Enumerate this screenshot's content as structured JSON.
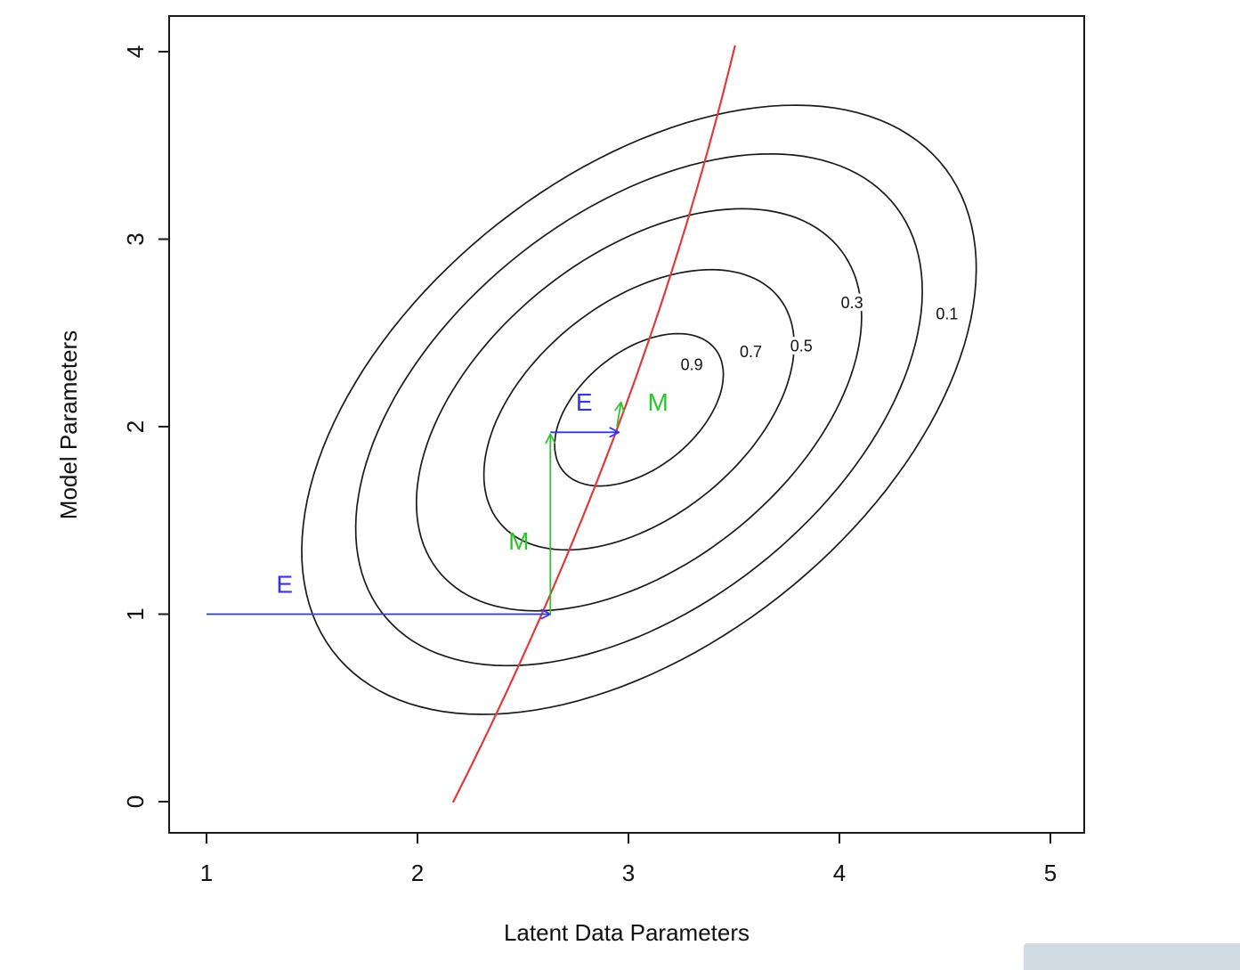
{
  "window": {
    "background": "#ffffff"
  },
  "chart_data": {
    "type": "contour",
    "title": "",
    "xlabel": "Latent Data Parameters",
    "ylabel": "Model Parameters",
    "xlim": [
      0.82,
      5.16
    ],
    "ylim": [
      -0.17,
      4.19
    ],
    "xticks": [
      1,
      2,
      3,
      4,
      5
    ],
    "yticks": [
      0,
      1,
      2,
      3,
      4
    ],
    "grid": false,
    "legend": false,
    "colors": {
      "contour": "#1a1a1a",
      "axis": "#1a1a1a",
      "ridge": "#e03a3a",
      "e_step": "#3434ee",
      "m_step": "#2ec42e"
    },
    "contours": {
      "description": "likelihood contour ellipses",
      "center": [
        3.05,
        2.09
      ],
      "angle_deg": 46,
      "a": 1.95,
      "b": 1.18,
      "levels": [
        {
          "level": 0.9,
          "scale": 0.25
        },
        {
          "level": 0.7,
          "scale": 0.46
        },
        {
          "level": 0.5,
          "scale": 0.66
        },
        {
          "level": 0.3,
          "scale": 0.84
        },
        {
          "level": 0.1,
          "scale": 1.0
        }
      ],
      "labels": [
        {
          "text": "0.9",
          "x": 3.3,
          "y": 2.33
        },
        {
          "text": "0.7",
          "x": 3.58,
          "y": 2.4
        },
        {
          "text": "0.5",
          "x": 3.82,
          "y": 2.43
        },
        {
          "text": "0.3",
          "x": 4.06,
          "y": 2.66
        },
        {
          "text": "0.1",
          "x": 4.51,
          "y": 2.6
        }
      ]
    },
    "ridge_curve": {
      "color_key": "ridge",
      "poly_x_of_y": {
        "c0": 2.17,
        "c1": 0.448,
        "c2": -0.029
      },
      "y_range": [
        0.0,
        4.03
      ],
      "points": [
        [
          2.17,
          0.0
        ],
        [
          2.63,
          1.0
        ],
        [
          2.95,
          2.0
        ],
        [
          3.26,
          3.0
        ],
        [
          3.5,
          4.0
        ]
      ]
    },
    "em_steps": [
      {
        "step": "E",
        "from": [
          1.0,
          1.0
        ],
        "to": [
          2.63,
          1.0
        ],
        "label": "E",
        "label_pos": [
          1.37,
          1.16
        ]
      },
      {
        "step": "M",
        "from": [
          2.63,
          1.0
        ],
        "to": [
          2.63,
          1.96
        ],
        "label": "M",
        "label_pos": [
          2.48,
          1.39
        ]
      },
      {
        "step": "E",
        "from": [
          2.63,
          1.97
        ],
        "to": [
          2.955,
          1.97
        ],
        "label": "E",
        "label_pos": [
          2.79,
          2.13
        ]
      },
      {
        "step": "M",
        "from": [
          2.945,
          2.0
        ],
        "to": [
          2.965,
          2.13
        ],
        "label": "M",
        "label_pos": [
          3.14,
          2.13
        ]
      }
    ],
    "corner_overlay": {
      "color": "#d0dbe4"
    }
  }
}
